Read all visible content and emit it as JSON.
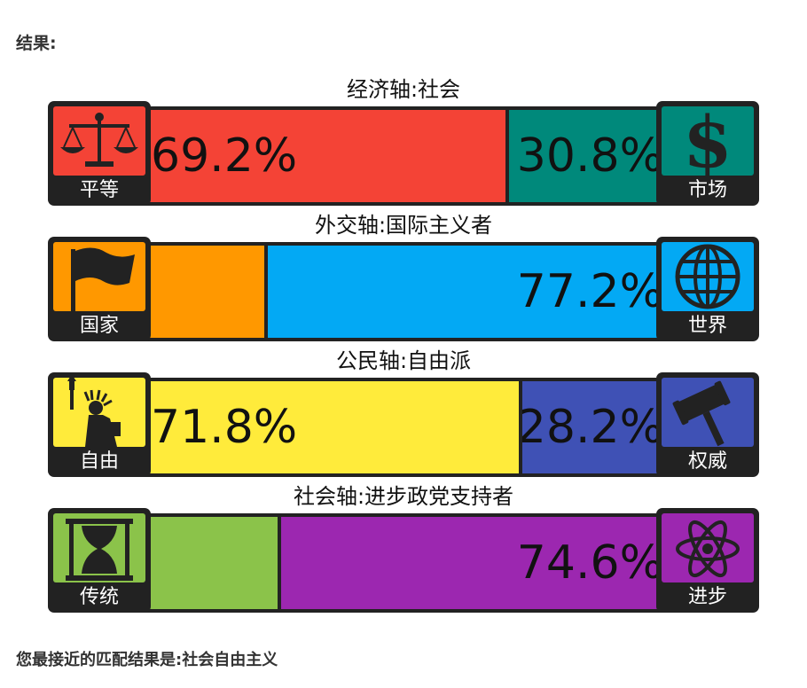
{
  "heading": "结果:",
  "footer": "您最接近的匹配结果是:社会自由主义",
  "axes": [
    {
      "title": "经济轴:社会",
      "left_label": "平等",
      "right_label": "市场",
      "left_icon": "scales-icon",
      "right_icon": "dollar-icon",
      "left_color": "#f44336",
      "right_color": "#00897b",
      "left_value": 69.2,
      "right_value": 30.8,
      "left_text": "69.2%",
      "right_text": "30.8%"
    },
    {
      "title": "外交轴:国际主义者",
      "left_label": "国家",
      "right_label": "世界",
      "left_icon": "flag-icon",
      "right_icon": "globe-icon",
      "left_color": "#ff9800",
      "right_color": "#03a9f4",
      "left_value": 22.8,
      "right_value": 77.2,
      "left_text": "",
      "right_text": "77.2%"
    },
    {
      "title": "公民轴:自由派",
      "left_label": "自由",
      "right_label": "权威",
      "left_icon": "liberty-statue-icon",
      "right_icon": "gavel-icon",
      "left_color": "#ffeb3b",
      "right_color": "#3f51b5",
      "left_value": 71.8,
      "right_value": 28.2,
      "left_text": "71.8%",
      "right_text": "28.2%"
    },
    {
      "title": "社会轴:进步政党支持者",
      "left_label": "传统",
      "right_label": "进步",
      "left_icon": "hourglass-icon",
      "right_icon": "atom-icon",
      "left_color": "#8bc34a",
      "right_color": "#9c27b0",
      "left_value": 25.4,
      "right_value": 74.6,
      "left_text": "",
      "right_text": "74.6%"
    }
  ]
}
